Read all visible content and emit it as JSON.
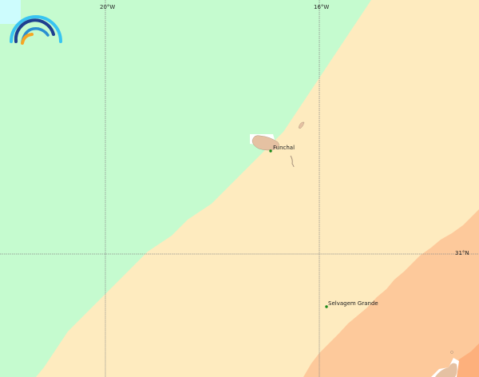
{
  "map": {
    "graticule": {
      "longitudes": [
        {
          "label": "20°W"
        },
        {
          "label": "16°W"
        }
      ],
      "latitudes": [
        {
          "label": "31°N"
        }
      ]
    },
    "places": [
      {
        "name": "Funchal"
      },
      {
        "name": "Selvagem Grande"
      }
    ],
    "colors": {
      "zone_green": "#c5fbcf",
      "zone_yellow": "#feebbf",
      "zone_orange": "#fdc99b",
      "zone_dark_orange": "#fdb07c",
      "zone_cyan": "#cdfcfd",
      "land": "#e5c1a2",
      "place_marker": "#1a8a1a"
    }
  }
}
